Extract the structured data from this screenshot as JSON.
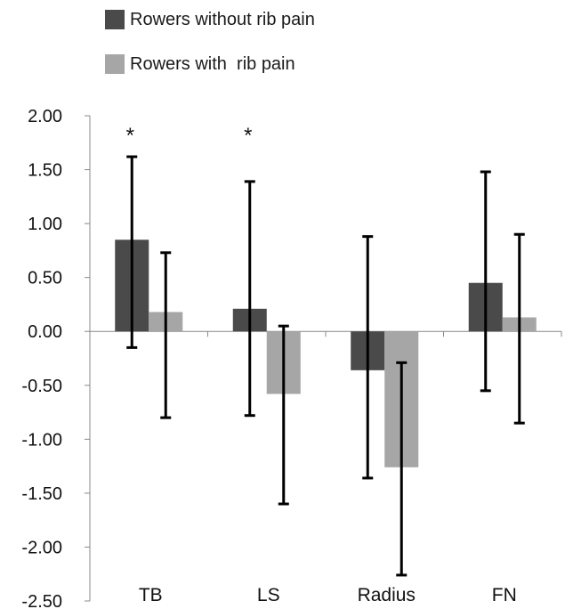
{
  "chart_data": {
    "type": "bar",
    "categories": [
      "TB",
      "LS",
      "Radius",
      "FN"
    ],
    "series": [
      {
        "name": "Rowers without rib pain",
        "color": "#4a4a4a",
        "values": [
          0.85,
          0.21,
          -0.36,
          0.45
        ],
        "error_low": [
          -0.15,
          -0.78,
          -1.36,
          -0.55
        ],
        "error_high": [
          1.62,
          1.39,
          0.88,
          1.48
        ]
      },
      {
        "name": "Rowers with  rib pain",
        "color": "#a6a6a6",
        "values": [
          0.18,
          -0.58,
          -1.26,
          0.13
        ],
        "error_low": [
          -0.8,
          -1.6,
          -2.26,
          -0.85
        ],
        "error_high": [
          0.73,
          0.05,
          -0.29,
          0.9
        ]
      }
    ],
    "ylim": [
      -2.5,
      2.0
    ],
    "yticks": [
      "2.00",
      "1.50",
      "1.00",
      "0.50",
      "0.00",
      "-0.50",
      "-1.00",
      "-1.50",
      "-2.00",
      "-2.50"
    ],
    "ytick_values": [
      2.0,
      1.5,
      1.0,
      0.5,
      0.0,
      -0.5,
      -1.0,
      -1.5,
      -2.0,
      -2.5
    ],
    "annotations": [
      {
        "category": "TB",
        "text": "*"
      },
      {
        "category": "LS",
        "text": "*"
      }
    ],
    "legend_position": "top-left",
    "grid": false
  }
}
